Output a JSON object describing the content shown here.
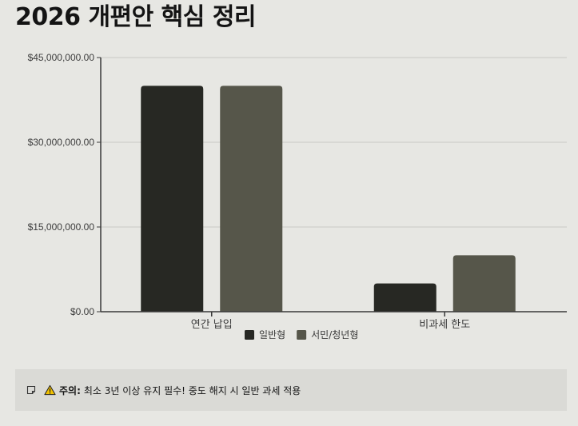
{
  "title": "2026 개편안 핵심 정리",
  "chart_data": {
    "type": "bar",
    "categories": [
      "연간 납입",
      "비과세 한도"
    ],
    "series": [
      {
        "name": "일반형",
        "values": [
          40000000,
          5000000
        ],
        "color": "#272823"
      },
      {
        "name": "서민/청년형",
        "values": [
          40000000,
          10000000
        ],
        "color": "#56564a"
      }
    ],
    "y_ticks": [
      "$0.00",
      "$15,000,000.00",
      "$30,000,000.00",
      "$45,000,000.00"
    ],
    "y_tick_values": [
      0,
      15000000,
      30000000,
      45000000
    ],
    "ylim": [
      0,
      45000000
    ],
    "grid": true,
    "legend_position": "bottom"
  },
  "notice": {
    "icon": "note-icon",
    "warning_icon": "warning-icon",
    "label": "주의:",
    "text": "최소 3년 이상 유지 필수! 중도 해지 시 일반 과세 적용"
  }
}
